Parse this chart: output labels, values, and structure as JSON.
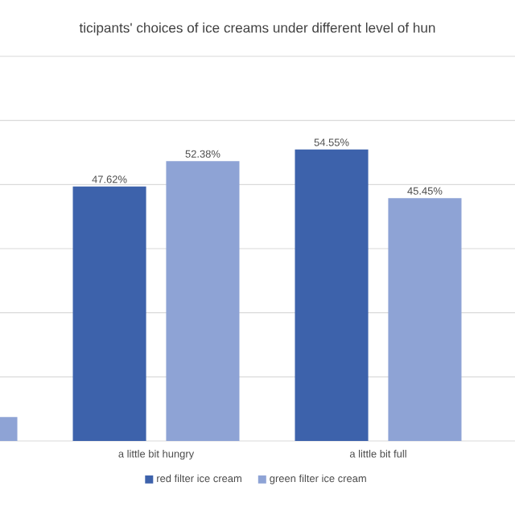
{
  "chart_data": {
    "type": "bar",
    "title": "ticipants' choices of ice creams under different level of hun",
    "categories": [
      null,
      "a little bit hungry",
      "a little bit full"
    ],
    "series": [
      {
        "name": "red filter ice cream",
        "color": "#3d62ab",
        "values": [
          null,
          47.62,
          54.55
        ],
        "value_labels": [
          null,
          "47.62%",
          "54.55%"
        ]
      },
      {
        "name": "green filter ice cream",
        "color": "#8ea3d5",
        "values": [
          4.5,
          52.38,
          45.45
        ],
        "value_labels": [
          null,
          "52.38%",
          "45.45%"
        ]
      }
    ],
    "ylim": [
      0,
      72
    ],
    "yticks": [
      {
        "value": 0,
        "label": null
      },
      {
        "value": 12,
        "label": null
      },
      {
        "value": 24,
        "label": null
      },
      {
        "value": 36,
        "label": null
      },
      {
        "value": 48,
        "label": null
      },
      {
        "value": 60,
        "label": null
      },
      {
        "value": 72,
        "label": null
      }
    ],
    "grid": "y",
    "legend": "bottom",
    "tick_labels": "x"
  }
}
